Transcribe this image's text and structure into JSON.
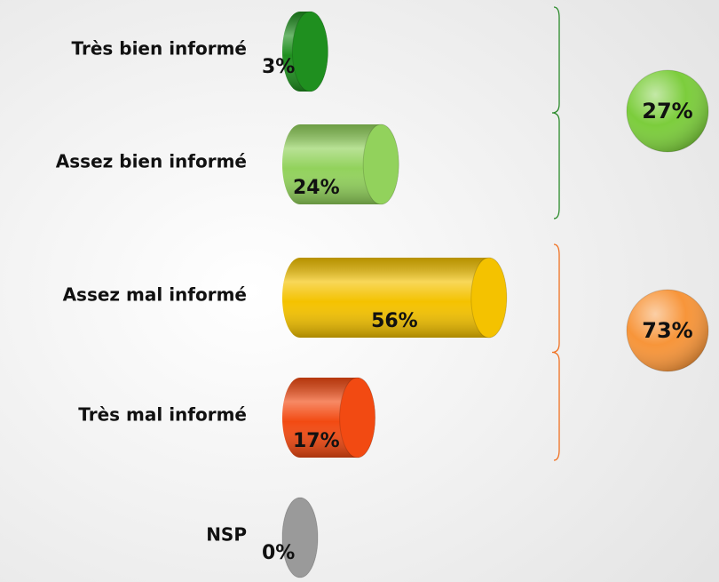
{
  "chart_data": {
    "type": "cylinder_bar",
    "categories": [
      "Très bien informé",
      "Assez bien informé",
      "Assez mal informé",
      "Très mal informé",
      "NSP"
    ],
    "values": [
      3,
      24,
      56,
      17,
      0
    ],
    "value_labels": [
      "3%",
      "24%",
      "56%",
      "17%",
      "0%"
    ],
    "colors": [
      "#1f8f1f",
      "#92d25c",
      "#f4c200",
      "#f24a12",
      "#9a9a9a"
    ],
    "annotations": [
      {
        "text": "27%",
        "color": "#1e8a1e",
        "bracket_color": "#2a8a2a",
        "circle_color": "#7ccd3c"
      },
      {
        "text": "73%",
        "color": "#e00000",
        "bracket_color": "#f07020",
        "circle_color": "#f7953a"
      }
    ]
  }
}
